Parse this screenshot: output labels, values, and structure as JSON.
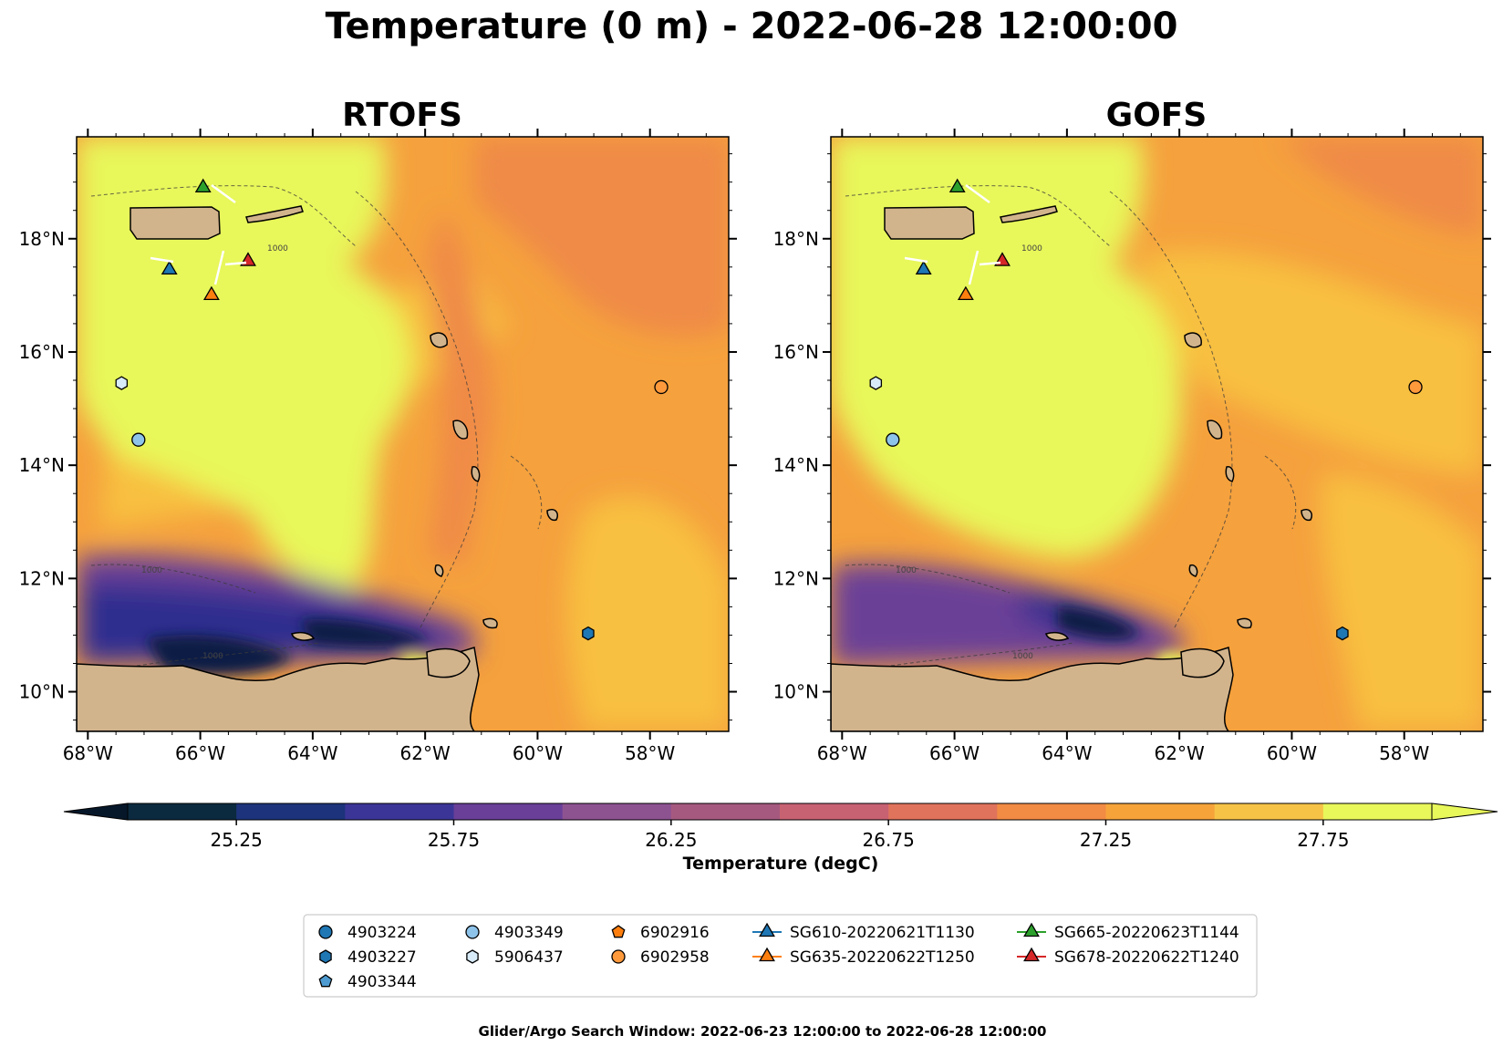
{
  "figure": {
    "title": "Temperature (0 m) - 2022-06-28 12:00:00",
    "footer": "Glider/Argo Search Window: 2022-06-23 12:00:00 to 2022-06-28 12:00:00"
  },
  "panels": [
    {
      "title": "RTOFS"
    },
    {
      "title": "GOFS"
    }
  ],
  "map": {
    "extent": {
      "lon": [
        -68.2,
        -56.6
      ],
      "lat": [
        9.3,
        19.8
      ]
    },
    "lon_ticks": [
      {
        "v": -68,
        "label": "68°W"
      },
      {
        "v": -66,
        "label": "66°W"
      },
      {
        "v": -64,
        "label": "64°W"
      },
      {
        "v": -62,
        "label": "62°W"
      },
      {
        "v": -60,
        "label": "60°W"
      },
      {
        "v": -58,
        "label": "58°W"
      }
    ],
    "lat_ticks": [
      {
        "v": 10,
        "label": "10°N"
      },
      {
        "v": 12,
        "label": "12°N"
      },
      {
        "v": 14,
        "label": "14°N"
      },
      {
        "v": 16,
        "label": "16°N"
      },
      {
        "v": 18,
        "label": "18°N"
      }
    ],
    "contour_label": "1000",
    "land_color": "#d2b48c",
    "colors": {
      "gulf": "#e8f75a",
      "warm": "#f8c040",
      "mid": "#f5a13d",
      "hot": "#ef8a47",
      "cold1": "#6a3f97",
      "cold2": "#2d2f8f",
      "cold3": "#0f1f45"
    }
  },
  "colorbar": {
    "label": "Temperature (degC)",
    "range": [
      25.0,
      28.0
    ],
    "step": 0.25,
    "ticks": [
      "25.25",
      "25.75",
      "26.25",
      "26.75",
      "27.25",
      "27.75"
    ],
    "colors": [
      "#0b2a3f",
      "#1d337b",
      "#3b3597",
      "#693f98",
      "#8d5391",
      "#a6597f",
      "#c76273",
      "#e0735c",
      "#f28b44",
      "#f6a33a",
      "#f7c347",
      "#e8f75a"
    ],
    "under_color": "#06172a",
    "over_color": "#e8f75a"
  },
  "legend": {
    "entries": [
      {
        "label": "4903224",
        "marker": "circle",
        "color": "#1f77b4"
      },
      {
        "label": "4903227",
        "marker": "hexagon",
        "color": "#1f77b4"
      },
      {
        "label": "4903344",
        "marker": "pentagon",
        "color": "#4e9bd1"
      },
      {
        "label": "4903349",
        "marker": "circle",
        "color": "#8ec3ea"
      },
      {
        "label": "5906437",
        "marker": "hexagon",
        "color": "#d7ebf8"
      },
      {
        "label": "6902916",
        "marker": "pentagon",
        "color": "#ff7f0e"
      },
      {
        "label": "6902958",
        "marker": "circle",
        "color": "#ff9a3c"
      },
      {
        "label": "SG610-20220621T1130",
        "marker": "triangle",
        "color": "#1f77b4"
      },
      {
        "label": "SG635-20220622T1250",
        "marker": "triangle",
        "color": "#ff7f0e"
      },
      {
        "label": "SG665-20220623T1144",
        "marker": "triangle",
        "color": "#2ca02c"
      },
      {
        "label": "SG678-20220622T1240",
        "marker": "triangle",
        "color": "#d62728"
      }
    ]
  },
  "observations": [
    {
      "lon": -67.4,
      "lat": 15.45,
      "marker": "hexagon",
      "color": "#d7ebf8"
    },
    {
      "lon": -67.1,
      "lat": 14.45,
      "marker": "circle",
      "color": "#8ec3ea"
    },
    {
      "lon": -57.8,
      "lat": 15.38,
      "marker": "circle",
      "color": "#ff9a3c"
    },
    {
      "lon": -59.1,
      "lat": 11.03,
      "marker": "hexagon",
      "color": "#1f77b4"
    },
    {
      "lon": -66.55,
      "lat": 17.45,
      "marker": "triangle",
      "color": "#1f77b4"
    },
    {
      "lon": -65.8,
      "lat": 17.0,
      "marker": "triangle",
      "color": "#ff7f0e"
    },
    {
      "lon": -65.95,
      "lat": 18.9,
      "marker": "triangle",
      "color": "#2ca02c"
    },
    {
      "lon": -65.15,
      "lat": 17.6,
      "marker": "triangle",
      "color": "#d62728"
    }
  ]
}
